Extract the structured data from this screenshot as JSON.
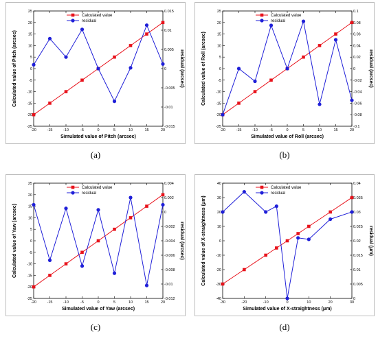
{
  "captions": [
    "(a)",
    "(b)",
    "(c)",
    "(d)"
  ],
  "colors": {
    "calculated": "#e8121b",
    "residual": "#1f1fd8"
  },
  "chart_data": [
    {
      "type": "line",
      "xlabel": "Simulated value of Pitch (arcsec)",
      "ylabel": "Calculated value of Pitch (arcsec)",
      "y2label": "residual (arcsec)",
      "xlim": [
        -20,
        20
      ],
      "ylim": [
        -25,
        25
      ],
      "y2lim": [
        -0.015,
        0.015
      ],
      "xticks": [
        -20,
        -15,
        -10,
        -5,
        0,
        5,
        10,
        15,
        20
      ],
      "xtick_labels": [
        "-20",
        "-15",
        "-10",
        "-5",
        "0",
        "5",
        "10",
        "15",
        "20"
      ],
      "yticks": [
        -25,
        -20,
        -15,
        -10,
        -5,
        0,
        5,
        10,
        15,
        20,
        25
      ],
      "ytick_labels": [
        "-25",
        "-20",
        "-15",
        "-10",
        "-5",
        "0",
        "5",
        "10",
        "15",
        "20",
        "25"
      ],
      "y2ticks": [
        -0.015,
        -0.01,
        -0.005,
        0,
        0.005,
        0.01,
        0.015
      ],
      "y2tick_labels": [
        "-0.015",
        "-0.01",
        "-0.005",
        "0",
        "0.005",
        "0.01",
        "0.015"
      ],
      "legend": "top-center",
      "x": [
        -20,
        -15,
        -10,
        -5,
        0,
        5,
        10,
        15,
        20
      ],
      "series": [
        {
          "name": "Calculated value",
          "axis": "left",
          "marker": "square",
          "values": [
            -20,
            -15,
            -10,
            -5,
            0,
            5,
            10,
            15,
            20
          ]
        },
        {
          "name": "residual",
          "axis": "right",
          "marker": "circle",
          "values": [
            0.001,
            0.0078,
            0.003,
            0.0102,
            0.0,
            -0.0085,
            0.0002,
            0.0113,
            0.0012
          ]
        }
      ]
    },
    {
      "type": "line",
      "xlabel": "Simulated value of Roll (arcsec)",
      "ylabel": "Calculated value of Roll (arcsec)",
      "y2label": "residual (arcsec)",
      "xlim": [
        -20,
        20
      ],
      "ylim": [
        -25,
        25
      ],
      "y2lim": [
        -0.1,
        0.1
      ],
      "xticks": [
        -20,
        -15,
        -10,
        -5,
        0,
        5,
        10,
        15,
        20
      ],
      "xtick_labels": [
        "-20",
        "-15",
        "-10",
        "-5",
        "0",
        "5",
        "10",
        "15",
        "20"
      ],
      "yticks": [
        -25,
        -20,
        -15,
        -10,
        -5,
        0,
        5,
        10,
        15,
        20,
        25
      ],
      "ytick_labels": [
        "-25",
        "-20",
        "-15",
        "-10",
        "-5",
        "0",
        "5",
        "10",
        "15",
        "20",
        "25"
      ],
      "y2ticks": [
        -0.1,
        -0.08,
        -0.06,
        -0.04,
        -0.02,
        0,
        0.02,
        0.04,
        0.06,
        0.08,
        0.1
      ],
      "y2tick_labels": [
        "-0.1",
        "-0.08",
        "-0.06",
        "-0.04",
        "-0.02",
        "0",
        "0.02",
        "0.04",
        "0.06",
        "0.08",
        "0.1"
      ],
      "legend": "top-center",
      "x": [
        -20,
        -15,
        -10,
        -5,
        0,
        5,
        10,
        15,
        20
      ],
      "series": [
        {
          "name": "Calculated value",
          "axis": "left",
          "marker": "square",
          "values": [
            -20,
            -15,
            -10,
            -5,
            0,
            5,
            10,
            15,
            20
          ]
        },
        {
          "name": "residual",
          "axis": "right",
          "marker": "circle",
          "values": [
            -0.08,
            0.0,
            -0.022,
            0.075,
            0.0,
            0.082,
            -0.062,
            0.05,
            -0.055
          ]
        }
      ]
    },
    {
      "type": "line",
      "xlabel": "Simulated value of Yaw (arcsec)",
      "ylabel": "Calculated value of Yaw (arcsec)",
      "y2label": "residual (arcsec)",
      "xlim": [
        -20,
        20
      ],
      "ylim": [
        -25,
        25
      ],
      "y2lim": [
        -0.012,
        0.004
      ],
      "xticks": [
        -20,
        -15,
        -10,
        -5,
        0,
        5,
        10,
        15,
        20
      ],
      "xtick_labels": [
        "-20",
        "-15",
        "-10",
        "-5",
        "0",
        "5",
        "10",
        "15",
        "20"
      ],
      "yticks": [
        -25,
        -20,
        -15,
        -10,
        -5,
        0,
        5,
        10,
        15,
        20,
        25
      ],
      "ytick_labels": [
        "-25",
        "-20",
        "-15",
        "-10",
        "-5",
        "0",
        "5",
        "10",
        "15",
        "20",
        "25"
      ],
      "y2ticks": [
        -0.012,
        -0.01,
        -0.008,
        -0.006,
        -0.004,
        -0.002,
        0,
        0.002,
        0.004
      ],
      "y2tick_labels": [
        "-0.012",
        "-0.01",
        "-0.008",
        "-0.006",
        "-0.004",
        "-0.002",
        "0",
        "0.002",
        "0.004"
      ],
      "legend": "top-center",
      "x": [
        -20,
        -15,
        -10,
        -5,
        0,
        5,
        10,
        15,
        20
      ],
      "series": [
        {
          "name": "Calculated value",
          "axis": "left",
          "marker": "square",
          "values": [
            -20,
            -15,
            -10,
            -5,
            0,
            5,
            10,
            15,
            20
          ]
        },
        {
          "name": "residual",
          "axis": "right",
          "marker": "circle",
          "values": [
            0.001,
            -0.0067,
            0.0005,
            -0.0075,
            0.0003,
            -0.0085,
            0.002,
            -0.0102,
            0.001
          ]
        }
      ]
    },
    {
      "type": "line",
      "xlabel": "Simulated value of X-straightness (μm)",
      "ylabel": "Calculated value of X-straightness (μm)",
      "y2label": "residual (μm)",
      "xlim": [
        -30,
        30
      ],
      "ylim": [
        -40,
        40
      ],
      "y2lim": [
        0,
        0.04
      ],
      "xticks": [
        -30,
        -20,
        -10,
        0,
        10,
        20,
        30
      ],
      "xtick_labels": [
        "-30",
        "-20",
        "-10",
        "0",
        "10",
        "20",
        "30"
      ],
      "yticks": [
        -40,
        -30,
        -20,
        -10,
        0,
        10,
        20,
        30,
        40
      ],
      "ytick_labels": [
        "-40",
        "-30",
        "-20",
        "-10",
        "0",
        "10",
        "20",
        "30",
        "40"
      ],
      "y2ticks": [
        0,
        0.005,
        0.01,
        0.015,
        0.02,
        0.025,
        0.03,
        0.035,
        0.04
      ],
      "y2tick_labels": [
        "0",
        "0.005",
        "0.01",
        "0.015",
        "0.02",
        "0.025",
        "0.03",
        "0.035",
        "0.04"
      ],
      "legend": "top-center",
      "x": [
        -30,
        -20,
        -10,
        -5,
        0,
        5,
        10,
        20,
        30
      ],
      "series": [
        {
          "name": "Calculated value",
          "axis": "left",
          "marker": "square",
          "values": [
            -30,
            -20,
            -10,
            -5,
            0,
            5,
            10,
            20,
            30
          ]
        },
        {
          "name": "residual",
          "axis": "right",
          "marker": "circle",
          "values": [
            0.03,
            0.037,
            0.03,
            0.032,
            0.0,
            0.021,
            0.0205,
            0.0275,
            0.03
          ]
        }
      ]
    }
  ]
}
